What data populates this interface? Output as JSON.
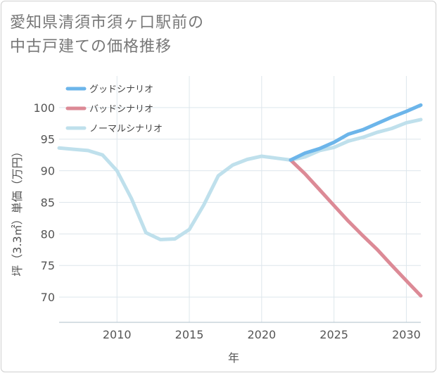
{
  "title_lines": [
    "愛知県清須市須ヶ口駅前の",
    "中古戸建ての価格推移"
  ],
  "chart_data": {
    "type": "line",
    "xlabel": "年",
    "ylabel": "坪（3.3㎡）単価（万円）",
    "xlim": [
      2006,
      2031
    ],
    "ylim": [
      66,
      105
    ],
    "xticks": [
      2010,
      2015,
      2020,
      2025,
      2030
    ],
    "yticks": [
      70,
      75,
      80,
      85,
      90,
      95,
      100
    ],
    "grid": true,
    "legend_position": "top-left",
    "series": [
      {
        "name": "グッドシナリオ",
        "color": "#6cb5ea",
        "x": [
          2022,
          2023,
          2024,
          2025,
          2026,
          2027,
          2028,
          2029,
          2030,
          2031
        ],
        "y": [
          91.7,
          92.8,
          93.5,
          94.5,
          95.8,
          96.5,
          97.5,
          98.5,
          99.4,
          100.4
        ]
      },
      {
        "name": "バッドシナリオ",
        "color": "#dc8a96",
        "x": [
          2022,
          2023,
          2024,
          2025,
          2026,
          2027,
          2028,
          2029,
          2030,
          2031
        ],
        "y": [
          91.7,
          89.5,
          87.0,
          84.5,
          82.0,
          79.7,
          77.5,
          75.0,
          72.6,
          70.2
        ]
      },
      {
        "name": "ノーマルシナリオ",
        "color": "#bfe0ec",
        "x": [
          2006,
          2007,
          2008,
          2009,
          2010,
          2011,
          2012,
          2013,
          2014,
          2015,
          2016,
          2017,
          2018,
          2019,
          2020,
          2021,
          2022,
          2023,
          2024,
          2025,
          2026,
          2027,
          2028,
          2029,
          2030,
          2031
        ],
        "y": [
          93.6,
          93.4,
          93.2,
          92.5,
          90.0,
          85.6,
          80.2,
          79.1,
          79.2,
          80.7,
          84.6,
          89.2,
          90.9,
          91.8,
          92.3,
          92.0,
          91.7,
          92.2,
          93.2,
          93.7,
          94.7,
          95.3,
          96.1,
          96.7,
          97.6,
          98.1
        ]
      }
    ]
  }
}
